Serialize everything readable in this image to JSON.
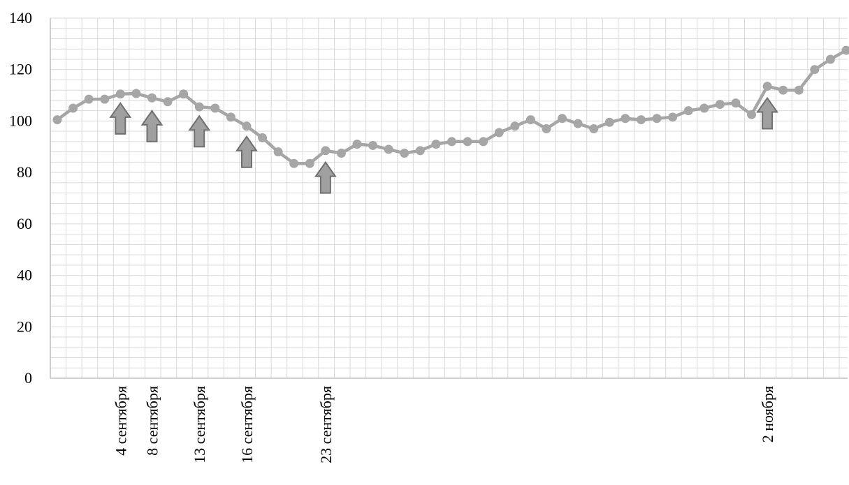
{
  "chart_data": {
    "type": "line",
    "title": "",
    "xlabel": "",
    "ylabel": "",
    "ylim": [
      0,
      140
    ],
    "yticks": [
      0,
      20,
      40,
      60,
      80,
      100,
      120,
      140
    ],
    "grid": true,
    "legend": "none",
    "series": [
      {
        "color": "#a6a6a6",
        "marker": "circle",
        "values": [
          100.5,
          105,
          108.5,
          108.5,
          110.5,
          110.7,
          109,
          107.5,
          110.5,
          105.5,
          105,
          101.5,
          98,
          93.5,
          88,
          83.5,
          83.5,
          88.5,
          87.5,
          91,
          90.5,
          89,
          87.5,
          88.5,
          91,
          92,
          92,
          92,
          95.5,
          98,
          100.5,
          97,
          101,
          99,
          97,
          99.5,
          101,
          100.5,
          101,
          101.5,
          104,
          105,
          106.5,
          107,
          102.5,
          113.5,
          112,
          112,
          120,
          124,
          127.5
        ]
      }
    ],
    "x_labels": [
      {
        "index": 4,
        "text": "4 сентября"
      },
      {
        "index": 6,
        "text": "8 сентября"
      },
      {
        "index": 9,
        "text": "13 сентября"
      },
      {
        "index": 12,
        "text": "16 сентября"
      },
      {
        "index": 17,
        "text": "23 сентября"
      },
      {
        "index": 45,
        "text": "2 ноября"
      }
    ],
    "arrows": [
      {
        "index": 4,
        "value": 95
      },
      {
        "index": 6,
        "value": 92
      },
      {
        "index": 9,
        "value": 90
      },
      {
        "index": 12,
        "value": 82
      },
      {
        "index": 17,
        "value": 72
      },
      {
        "index": 45,
        "value": 97
      }
    ],
    "colors": {
      "line": "#a6a6a6",
      "arrow_fill": "#a0a0a0",
      "arrow_stroke": "#6f6f6f",
      "grid": "#d9d9d9",
      "axis": "#bfbfbf"
    }
  }
}
